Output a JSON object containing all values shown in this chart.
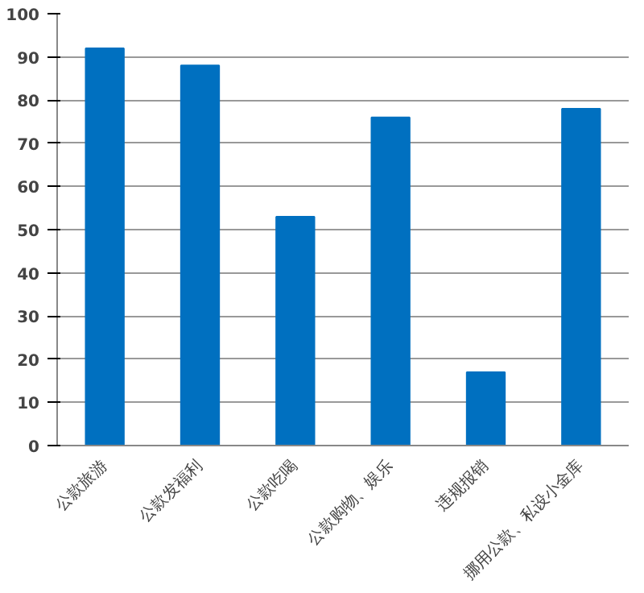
{
  "chart_data": {
    "type": "bar",
    "categories": [
      "公款旅游",
      "公款发福利",
      "公款吃喝",
      "公款购物、娱乐",
      "违规报销",
      "挪用公款、私设小金库"
    ],
    "values": [
      92,
      88,
      53,
      76,
      17,
      78
    ],
    "color": "#0070c0",
    "ylim": [
      0,
      100
    ],
    "yticks": [
      0,
      10,
      20,
      30,
      40,
      50,
      60,
      70,
      80,
      90,
      100
    ],
    "grid": "y"
  }
}
